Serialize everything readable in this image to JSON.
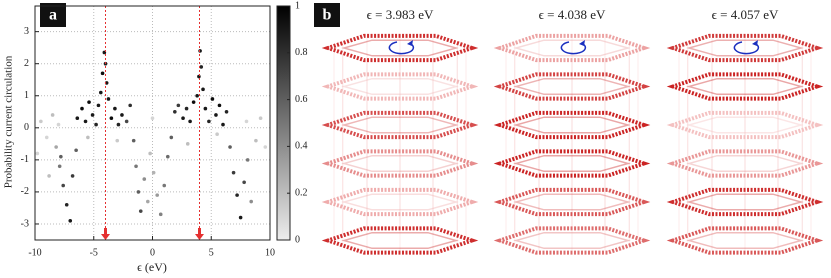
{
  "chart_data": {
    "type": "scatter",
    "panel_label": "a",
    "xlabel": "ϵ (eV)",
    "ylabel": "Probability current circulation",
    "xlim": [
      -10,
      10
    ],
    "ylim": [
      -3.5,
      3.8
    ],
    "xticks": [
      -10,
      -5,
      0,
      5,
      10
    ],
    "yticks": [
      -3,
      -2,
      -1,
      0,
      1,
      2,
      3
    ],
    "grid": true,
    "colorbar": {
      "lim": [
        0,
        1
      ],
      "ticks": [
        0,
        0.2,
        0.4,
        0.6,
        0.8,
        1
      ]
    },
    "vlines": [
      -4.0,
      4.0
    ],
    "vline_color": "#e53030",
    "x": [
      -9.5,
      -9.0,
      -8.5,
      -8.2,
      -7.9,
      -7.6,
      -7.3,
      -7.0,
      -7.8,
      -6.8,
      -6.5,
      -8.8,
      -9.8,
      -6.4,
      -6.0,
      -5.7,
      -5.4,
      -5.1,
      -4.8,
      -4.6,
      -4.4,
      -4.25,
      -4.1,
      -4.0,
      -3.9,
      -3.75,
      -3.5,
      -3.2,
      -2.9,
      -2.6,
      -2.2,
      -1.9,
      -1.6,
      -1.4,
      -1.2,
      -1.0,
      -0.7,
      -0.4,
      -0.2,
      0.1,
      0.4,
      0.7,
      1.0,
      1.3,
      1.6,
      1.9,
      2.2,
      2.6,
      2.9,
      3.2,
      3.5,
      3.8,
      3.95,
      4.05,
      4.15,
      4.3,
      4.5,
      4.8,
      5.1,
      5.4,
      5.7,
      6.0,
      6.3,
      6.6,
      6.9,
      7.2,
      7.5,
      7.8,
      8.1,
      8.4,
      8.8,
      9.2,
      9.6,
      -3.0,
      3.0,
      -5.5,
      5.5,
      0.0,
      -8.0,
      8.0
    ],
    "values": [
      0.2,
      -0.3,
      0.4,
      -0.6,
      -1.2,
      -1.8,
      -2.4,
      -2.9,
      -0.9,
      -1.5,
      -0.7,
      -1.5,
      -0.8,
      0.3,
      0.6,
      0.2,
      0.8,
      0.4,
      0.1,
      0.7,
      1.1,
      1.7,
      2.35,
      2.0,
      1.4,
      0.9,
      0.3,
      0.6,
      0.1,
      0.4,
      0.2,
      0.7,
      -0.4,
      -1.2,
      -2.0,
      -2.6,
      -1.6,
      -2.3,
      -0.8,
      -1.4,
      -2.1,
      -2.7,
      -1.8,
      -0.9,
      -0.3,
      0.5,
      0.7,
      0.3,
      0.6,
      0.2,
      0.8,
      1.0,
      1.6,
      2.4,
      1.9,
      1.2,
      0.6,
      0.2,
      0.9,
      0.4,
      0.7,
      0.1,
      0.5,
      -0.6,
      -1.4,
      -2.1,
      -2.8,
      -1.7,
      -1.0,
      -2.3,
      -0.4,
      0.3,
      -0.6,
      -0.4,
      -0.5,
      -0.3,
      -0.2,
      0.3,
      0.1,
      0.2
    ],
    "colors": [
      0.15,
      0.1,
      0.2,
      0.3,
      0.5,
      0.7,
      0.85,
      0.9,
      0.6,
      0.75,
      0.6,
      0.2,
      0.1,
      0.9,
      0.95,
      0.9,
      0.95,
      0.9,
      0.85,
      0.9,
      0.9,
      0.95,
      0.9,
      0.85,
      0.9,
      0.9,
      0.95,
      0.9,
      0.85,
      0.9,
      0.7,
      0.8,
      0.6,
      0.5,
      0.6,
      0.7,
      0.4,
      0.3,
      0.2,
      0.25,
      0.35,
      0.45,
      0.5,
      0.55,
      0.6,
      0.8,
      0.75,
      0.9,
      0.85,
      0.9,
      0.95,
      0.9,
      0.9,
      0.9,
      0.85,
      0.9,
      0.9,
      0.85,
      0.95,
      0.9,
      0.95,
      0.9,
      0.85,
      0.6,
      0.75,
      0.85,
      0.9,
      0.7,
      0.5,
      0.4,
      0.2,
      0.15,
      0.1,
      0.15,
      0.2,
      0.2,
      0.15,
      0.1,
      0.1,
      0.1
    ]
  },
  "panel_b": {
    "label": "b",
    "titles": [
      "ϵ = 3.983 eV",
      "ϵ = 4.038 eV",
      "ϵ = 4.057 eV"
    ]
  }
}
